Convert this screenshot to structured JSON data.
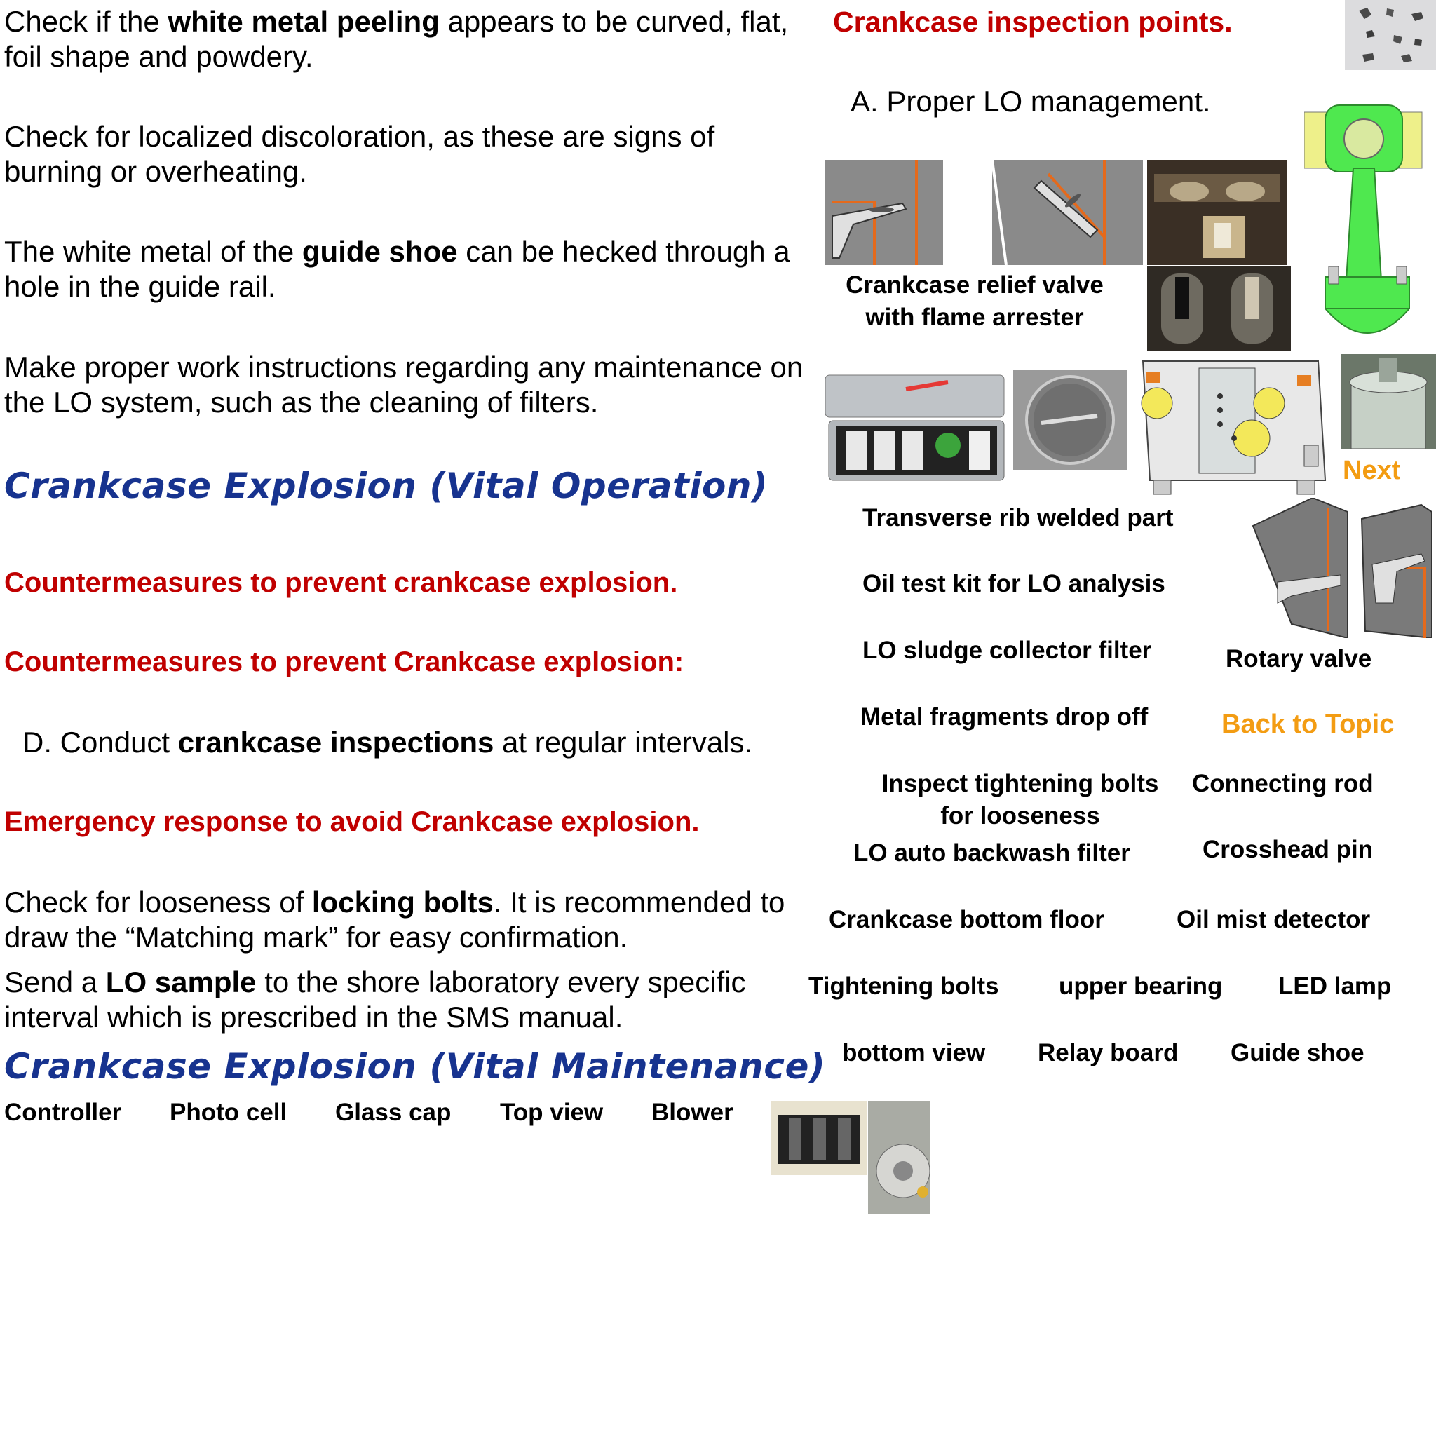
{
  "left": {
    "p1": {
      "pre": "Check if the ",
      "bold": "white metal peeling",
      "post": " appears to be curved, flat, foil shape and powdery."
    },
    "p2": "Check for localized discoloration, as these are signs of burning or overheating.",
    "p3": {
      "pre": "The white metal of the ",
      "bold": "guide shoe",
      "post": " can be hecked through a hole in the guide rail."
    },
    "p4": "Make proper work instructions regarding any maintenance on the LO system, such as the cleaning of filters.",
    "heading1": "Crankcase Explosion (Vital Operation)",
    "red1": "Countermeasures to prevent crankcase explosion.",
    "red2": "Countermeasures to prevent Crankcase explosion:",
    "d": {
      "pre": "D. Conduct ",
      "bold": "crankcase inspections",
      "post": " at regular intervals."
    },
    "red3": "Emergency response to avoid Crankcase explosion.",
    "p5": {
      "pre": "Check for looseness of ",
      "bold": "locking bolts",
      "post": ". It is recommended to draw the “Matching mark” for easy confirmation."
    },
    "p6": {
      "pre": "Send a ",
      "bold": "LO sample",
      "post": " to the shore laboratory every specific interval which is prescribed in the SMS manual."
    },
    "heading2": "Crankcase Explosion (Vital Maintenance)",
    "bottom_labels": [
      "Controller",
      "Photo cell",
      "Glass cap",
      "Top view",
      "Blower"
    ]
  },
  "right": {
    "title": "Crankcase inspection points.",
    "a": "A. Proper LO management.",
    "relief_valve": [
      "Crankcase relief valve",
      "with flame arrester"
    ],
    "next": "Next",
    "back": "Back to Topic",
    "labels": {
      "transverse": "Transverse rib welded part",
      "oil_test": "Oil test kit for LO analysis",
      "sludge": "LO sludge collector filter",
      "rotary": "Rotary valve",
      "metal": "Metal fragments drop off",
      "inspect": [
        "Inspect tightening bolts",
        "for looseness"
      ],
      "connecting": "Connecting rod",
      "backwash": "LO auto backwash filter",
      "crosshead": "Crosshead pin",
      "bottom_floor": "Crankcase bottom floor",
      "oil_mist": "Oil mist detector",
      "tightening": "Tightening bolts",
      "upper": "upper bearing",
      "led": "LED lamp",
      "bottom_view": "bottom view",
      "relay": "Relay board",
      "guide": "Guide shoe"
    }
  }
}
